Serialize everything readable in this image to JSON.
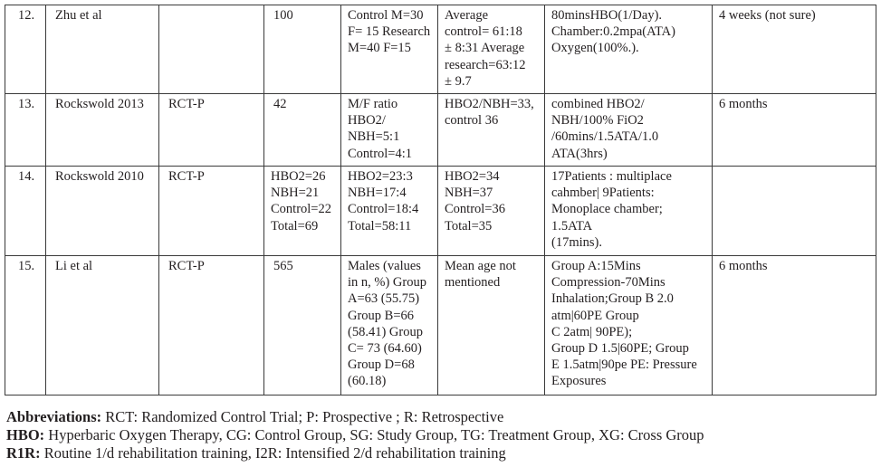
{
  "rows": [
    {
      "no": "12.",
      "author": "Zhu et al",
      "design": "",
      "n": "100",
      "gender": "Control M=30\nF= 15 Research\nM=40 F=15",
      "age": "Average\ncontrol= 61:18\n± 8:31 Average\nresearch=63:12\n± 9.7",
      "protocol": "80minsHBO(1/Day).\nChamber:0.2mpa(ATA)\nOxygen(100%.).",
      "followup": "4 weeks (not sure)"
    },
    {
      "no": "13.",
      "author": "Rockswold 2013",
      "design": "RCT-P",
      "n": "42",
      "gender": "M/F ratio\nHBO2/\nNBH=5:1\nControl=4:1",
      "age": "HBO2/NBH=33,\ncontrol 36",
      "protocol": "combined HBO2/\nNBH/100% FiO2\n/60mins/1.5ATA/1.0\nATA(3hrs)",
      "followup": "6 months"
    },
    {
      "no": "14.",
      "author": "Rockswold 2010",
      "design": "RCT-P",
      "n": "HBO2=26\nNBH=21\nControl=22\nTotal=69",
      "gender": "HBO2=23:3\nNBH=17:4\nControl=18:4\nTotal=58:11",
      "age": "HBO2=34\nNBH=37\nControl=36\nTotal=35",
      "protocol": "17Patients : multiplace\ncahmber| 9Patients:\nMonoplace chamber;\n1.5ATA\n(17mins).",
      "followup": ""
    },
    {
      "no": "15.",
      "author": "Li et al",
      "design": "RCT-P",
      "n": "565",
      "gender": "Males (values\nin n, %) Group\nA=63 (55.75)\nGroup B=66\n(58.41) Group\nC= 73 (64.60)\nGroup D=68\n(60.18)",
      "age": "Mean age not\nmentioned",
      "protocol": " Group A:15Mins\nCompression-70Mins\nInhalation;Group B 2.0\natm|60PE Group\nC 2atm| 90PE);\nGroup D 1.5|60PE; Group\nE 1.5atm|90pe PE: Pressure\nExposures",
      "followup": "6 months"
    }
  ],
  "abbreviations": [
    {
      "term": "Abbreviations:",
      "text": " RCT: Randomized Control Trial; P: Prospective ; R: Retrospective"
    },
    {
      "term": "HBO:",
      "text": " Hyperbaric Oxygen Therapy, CG: Control Group, SG: Study Group, TG: Treatment Group, XG: Cross Group"
    },
    {
      "term": "R1R:",
      "text": " Routine 1/d rehabilitation training, I2R: Intensified 2/d rehabilitation training"
    }
  ]
}
